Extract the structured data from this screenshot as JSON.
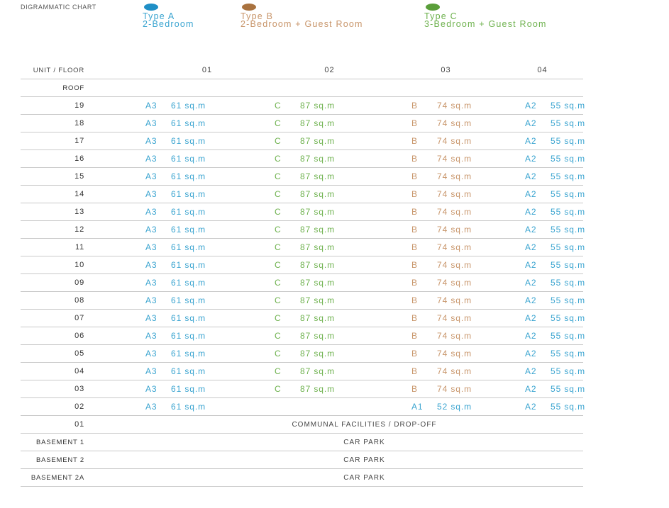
{
  "chart_title": "DIGRAMMATIC CHART",
  "colors": {
    "type_a": "#1f8fc6",
    "type_b": "#a9723f",
    "type_c": "#5a9e3a"
  },
  "legend": [
    {
      "type": "Type A",
      "desc": "2-Bedroom",
      "color": "#1f8fc6"
    },
    {
      "type": "Type B",
      "desc": "2-Bedroom + Guest Room",
      "color": "#a9723f"
    },
    {
      "type": "Type C",
      "desc": "3-Bedroom + Guest Room",
      "color": "#5a9e3a"
    }
  ],
  "table": {
    "header": {
      "label": "UNIT / FLOOR",
      "columns": [
        "01",
        "02",
        "03",
        "04"
      ]
    },
    "roof_label": "ROOF",
    "rows": [
      {
        "floor": "19",
        "units": [
          {
            "code": "A3",
            "area": "61 sq.m",
            "type": "a"
          },
          {
            "code": "C",
            "area": "87 sq.m",
            "type": "c"
          },
          {
            "code": "B",
            "area": "74 sq.m",
            "type": "b"
          },
          {
            "code": "A2",
            "area": "55 sq.m",
            "type": "a"
          }
        ]
      },
      {
        "floor": "18",
        "units": [
          {
            "code": "A3",
            "area": "61 sq.m",
            "type": "a"
          },
          {
            "code": "C",
            "area": "87 sq.m",
            "type": "c"
          },
          {
            "code": "B",
            "area": "74 sq.m",
            "type": "b"
          },
          {
            "code": "A2",
            "area": "55 sq.m",
            "type": "a"
          }
        ]
      },
      {
        "floor": "17",
        "units": [
          {
            "code": "A3",
            "area": "61 sq.m",
            "type": "a"
          },
          {
            "code": "C",
            "area": "87 sq.m",
            "type": "c"
          },
          {
            "code": "B",
            "area": "74 sq.m",
            "type": "b"
          },
          {
            "code": "A2",
            "area": "55 sq.m",
            "type": "a"
          }
        ]
      },
      {
        "floor": "16",
        "units": [
          {
            "code": "A3",
            "area": "61 sq.m",
            "type": "a"
          },
          {
            "code": "C",
            "area": "87 sq.m",
            "type": "c"
          },
          {
            "code": "B",
            "area": "74 sq.m",
            "type": "b"
          },
          {
            "code": "A2",
            "area": "55 sq.m",
            "type": "a"
          }
        ]
      },
      {
        "floor": "15",
        "units": [
          {
            "code": "A3",
            "area": "61 sq.m",
            "type": "a"
          },
          {
            "code": "C",
            "area": "87 sq.m",
            "type": "c"
          },
          {
            "code": "B",
            "area": "74 sq.m",
            "type": "b"
          },
          {
            "code": "A2",
            "area": "55 sq.m",
            "type": "a"
          }
        ]
      },
      {
        "floor": "14",
        "units": [
          {
            "code": "A3",
            "area": "61 sq.m",
            "type": "a"
          },
          {
            "code": "C",
            "area": "87 sq.m",
            "type": "c"
          },
          {
            "code": "B",
            "area": "74 sq.m",
            "type": "b"
          },
          {
            "code": "A2",
            "area": "55 sq.m",
            "type": "a"
          }
        ]
      },
      {
        "floor": "13",
        "units": [
          {
            "code": "A3",
            "area": "61 sq.m",
            "type": "a"
          },
          {
            "code": "C",
            "area": "87 sq.m",
            "type": "c"
          },
          {
            "code": "B",
            "area": "74 sq.m",
            "type": "b"
          },
          {
            "code": "A2",
            "area": "55 sq.m",
            "type": "a"
          }
        ]
      },
      {
        "floor": "12",
        "units": [
          {
            "code": "A3",
            "area": "61 sq.m",
            "type": "a"
          },
          {
            "code": "C",
            "area": "87 sq.m",
            "type": "c"
          },
          {
            "code": "B",
            "area": "74 sq.m",
            "type": "b"
          },
          {
            "code": "A2",
            "area": "55 sq.m",
            "type": "a"
          }
        ]
      },
      {
        "floor": "11",
        "units": [
          {
            "code": "A3",
            "area": "61 sq.m",
            "type": "a"
          },
          {
            "code": "C",
            "area": "87 sq.m",
            "type": "c"
          },
          {
            "code": "B",
            "area": "74 sq.m",
            "type": "b"
          },
          {
            "code": "A2",
            "area": "55 sq.m",
            "type": "a"
          }
        ]
      },
      {
        "floor": "10",
        "units": [
          {
            "code": "A3",
            "area": "61 sq.m",
            "type": "a"
          },
          {
            "code": "C",
            "area": "87 sq.m",
            "type": "c"
          },
          {
            "code": "B",
            "area": "74 sq.m",
            "type": "b"
          },
          {
            "code": "A2",
            "area": "55 sq.m",
            "type": "a"
          }
        ]
      },
      {
        "floor": "09",
        "units": [
          {
            "code": "A3",
            "area": "61 sq.m",
            "type": "a"
          },
          {
            "code": "C",
            "area": "87 sq.m",
            "type": "c"
          },
          {
            "code": "B",
            "area": "74 sq.m",
            "type": "b"
          },
          {
            "code": "A2",
            "area": "55 sq.m",
            "type": "a"
          }
        ]
      },
      {
        "floor": "08",
        "units": [
          {
            "code": "A3",
            "area": "61 sq.m",
            "type": "a"
          },
          {
            "code": "C",
            "area": "87 sq.m",
            "type": "c"
          },
          {
            "code": "B",
            "area": "74 sq.m",
            "type": "b"
          },
          {
            "code": "A2",
            "area": "55 sq.m",
            "type": "a"
          }
        ]
      },
      {
        "floor": "07",
        "units": [
          {
            "code": "A3",
            "area": "61 sq.m",
            "type": "a"
          },
          {
            "code": "C",
            "area": "87 sq.m",
            "type": "c"
          },
          {
            "code": "B",
            "area": "74 sq.m",
            "type": "b"
          },
          {
            "code": "A2",
            "area": "55 sq.m",
            "type": "a"
          }
        ]
      },
      {
        "floor": "06",
        "units": [
          {
            "code": "A3",
            "area": "61 sq.m",
            "type": "a"
          },
          {
            "code": "C",
            "area": "87 sq.m",
            "type": "c"
          },
          {
            "code": "B",
            "area": "74 sq.m",
            "type": "b"
          },
          {
            "code": "A2",
            "area": "55 sq.m",
            "type": "a"
          }
        ]
      },
      {
        "floor": "05",
        "units": [
          {
            "code": "A3",
            "area": "61 sq.m",
            "type": "a"
          },
          {
            "code": "C",
            "area": "87 sq.m",
            "type": "c"
          },
          {
            "code": "B",
            "area": "74 sq.m",
            "type": "b"
          },
          {
            "code": "A2",
            "area": "55 sq.m",
            "type": "a"
          }
        ]
      },
      {
        "floor": "04",
        "units": [
          {
            "code": "A3",
            "area": "61 sq.m",
            "type": "a"
          },
          {
            "code": "C",
            "area": "87 sq.m",
            "type": "c"
          },
          {
            "code": "B",
            "area": "74 sq.m",
            "type": "b"
          },
          {
            "code": "A2",
            "area": "55 sq.m",
            "type": "a"
          }
        ]
      },
      {
        "floor": "03",
        "units": [
          {
            "code": "A3",
            "area": "61 sq.m",
            "type": "a"
          },
          {
            "code": "C",
            "area": "87 sq.m",
            "type": "c"
          },
          {
            "code": "B",
            "area": "74 sq.m",
            "type": "b"
          },
          {
            "code": "A2",
            "area": "55 sq.m",
            "type": "a"
          }
        ]
      }
    ],
    "floor_02": {
      "floor": "02",
      "unit_01": {
        "code": "A3",
        "area": "61 sq.m",
        "type": "a"
      },
      "unit_03": {
        "code": "A1",
        "area": "52 sq.m",
        "type": "a"
      },
      "unit_04": {
        "code": "A2",
        "area": "55 sq.m",
        "type": "a"
      }
    },
    "floor_01": {
      "floor": "01",
      "text": "COMMUNAL FACILITIES / DROP-OFF"
    },
    "basements": [
      {
        "floor": "BASEMENT 1",
        "text": "CAR PARK"
      },
      {
        "floor": "BASEMENT 2",
        "text": "CAR PARK"
      },
      {
        "floor": "BASEMENT 2A",
        "text": "CAR PARK"
      }
    ]
  }
}
